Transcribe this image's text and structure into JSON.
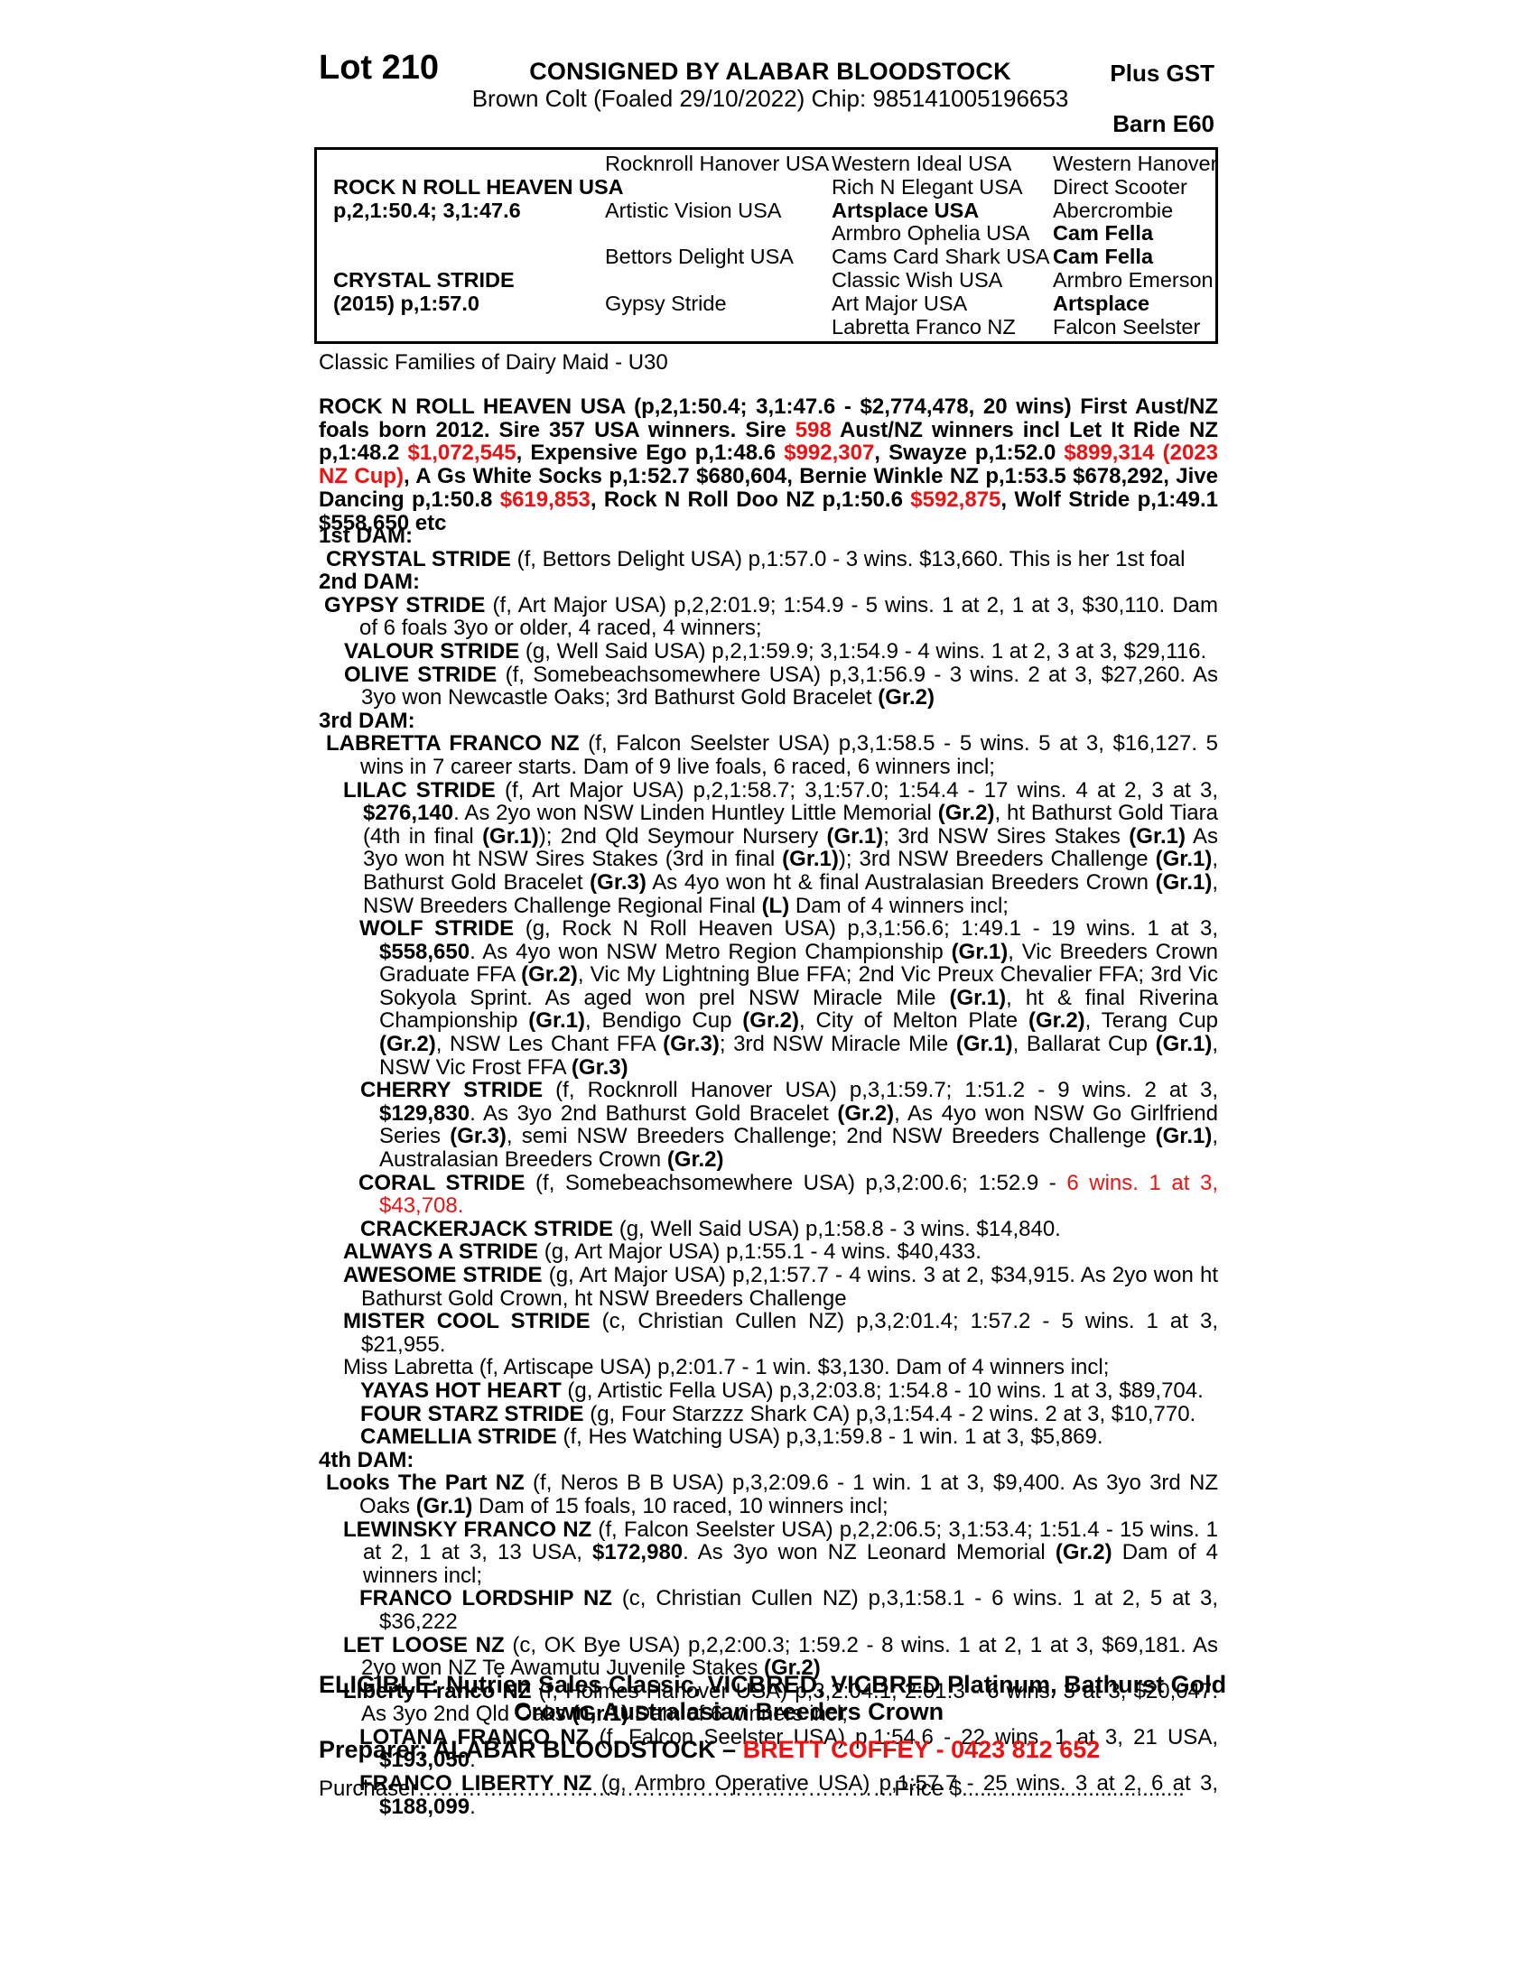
{
  "colors": {
    "red": "#ee1111",
    "text": "#000000",
    "page": "#ffffff"
  },
  "header": {
    "lot": "Lot 210",
    "consigned": "CONSIGNED BY ALABAR BLOODSTOCK",
    "plus_gst": "Plus GST",
    "description": "Brown Colt (Foaled 29/10/2022) Chip: 985141005196653",
    "barn": "Barn E60"
  },
  "pedigree_table": {
    "columns": [
      [
        {
          "row": 2,
          "text": "ROCK N ROLL HEAVEN USA",
          "b": true
        },
        {
          "row": 3,
          "text": "p,2,1:50.4; 3,1:47.6",
          "b": true
        },
        {
          "row": 6,
          "text": "CRYSTAL STRIDE",
          "b": true
        },
        {
          "row": 7,
          "text": "(2015) p,1:57.0",
          "b": true
        }
      ],
      [
        {
          "row": 1,
          "text": "Rocknroll Hanover USA"
        },
        {
          "row": 3,
          "text": "Artistic Vision USA"
        },
        {
          "row": 5,
          "text": "Bettors Delight USA"
        },
        {
          "row": 7,
          "text": "Gypsy Stride"
        }
      ],
      [
        {
          "row": 1,
          "text": "Western Ideal USA"
        },
        {
          "row": 2,
          "text": "Rich N Elegant USA"
        },
        {
          "row": 3,
          "text": "Artsplace USA",
          "b": true
        },
        {
          "row": 4,
          "text": "Armbro Ophelia USA"
        },
        {
          "row": 5,
          "text": "Cams Card Shark USA"
        },
        {
          "row": 6,
          "text": "Classic Wish USA"
        },
        {
          "row": 7,
          "text": "Art Major USA"
        },
        {
          "row": 8,
          "text": "Labretta Franco NZ"
        }
      ],
      [
        {
          "row": 1,
          "text": "Western Hanover"
        },
        {
          "row": 2,
          "text": "Direct Scooter"
        },
        {
          "row": 3,
          "text": "Abercrombie"
        },
        {
          "row": 4,
          "text": "Cam Fella",
          "b": true
        },
        {
          "row": 5,
          "text": "Cam Fella",
          "b": true
        },
        {
          "row": 6,
          "text": "Armbro Emerson"
        },
        {
          "row": 7,
          "text": "Artsplace",
          "b": true
        },
        {
          "row": 8,
          "text": "Falcon Seelster"
        }
      ]
    ]
  },
  "family_note": "Classic Families of Dairy Maid - U30",
  "sire_paragraph": {
    "segments": [
      {
        "t": "ROCK N ROLL HEAVEN USA (p,2,1:50.4; 3,1:47.6 - $2,774,478, 20 wins) First Aust/NZ foals born 2012. Sire 357 USA winners. Sire ",
        "b": true
      },
      {
        "t": "598",
        "b": true,
        "r": true
      },
      {
        "t": " Aust/NZ winners incl Let It Ride NZ p,1:48.2 ",
        "b": true
      },
      {
        "t": "$1,072,545",
        "b": true,
        "r": true
      },
      {
        "t": ", Expensive Ego p,1:48.6 ",
        "b": true
      },
      {
        "t": "$992,307",
        "b": true,
        "r": true
      },
      {
        "t": ", Swayze p,1:52.0 ",
        "b": true
      },
      {
        "t": "$899,314 (2023 NZ Cup)",
        "b": true,
        "r": true
      },
      {
        "t": ", A Gs White Socks p,1:52.7 $680,604, Bernie Winkle NZ p,1:53.5 $678,292, Jive Dancing p,1:50.8 ",
        "b": true
      },
      {
        "t": "$619,853",
        "b": true,
        "r": true
      },
      {
        "t": ", Rock N Roll Doo NZ p,1:50.6 ",
        "b": true
      },
      {
        "t": "$592,875",
        "b": true,
        "r": true
      },
      {
        "t": ", Wolf Stride p,1:49.1 $558,650 etc",
        "b": true
      }
    ]
  },
  "entries": [
    {
      "h": true,
      "ind": 0,
      "cont": 45,
      "segments": [
        {
          "t": "1st DAM:",
          "b": true
        }
      ]
    },
    {
      "ind": 8,
      "cont": 45,
      "segments": [
        {
          "t": "CRYSTAL STRIDE",
          "b": true
        },
        {
          "t": " (f, Bettors Delight USA) p,1:57.0 - 3 wins. $13,660. This is her 1st foal"
        }
      ]
    },
    {
      "h": true,
      "ind": 0,
      "cont": 45,
      "segments": [
        {
          "t": "2nd DAM:",
          "b": true
        }
      ]
    },
    {
      "ind": 6,
      "cont": 45,
      "segments": [
        {
          "t": "GYPSY STRIDE",
          "b": true
        },
        {
          "t": " (f, Art Major USA) p,2,2:01.9; 1:54.9 - 5 wins. 1 at 2, 1 at 3, $30,110. Dam of 6 foals 3yo or older, 4 raced, 4 winners;"
        }
      ]
    },
    {
      "ind": 28,
      "cont": 47,
      "segments": [
        {
          "t": "VALOUR STRIDE",
          "b": true
        },
        {
          "t": " (g, Well Said USA) p,2,1:59.9; 3,1:54.9 - 4 wins. 1 at 2, 3 at 3, $29,116."
        }
      ]
    },
    {
      "ind": 28,
      "cont": 47,
      "segments": [
        {
          "t": "OLIVE STRIDE",
          "b": true
        },
        {
          "t": " (f, Somebeachsomewhere USA) p,3,1:56.9 - 3 wins. 2 at 3, $27,260. As 3yo won Newcastle Oaks; 3rd Bathurst Gold Bracelet "
        },
        {
          "t": "(Gr.2)",
          "b": true
        }
      ]
    },
    {
      "h": true,
      "ind": 0,
      "cont": 45,
      "segments": [
        {
          "t": "3rd DAM:",
          "b": true
        }
      ]
    },
    {
      "ind": 8,
      "cont": 46,
      "segments": [
        {
          "t": "LABRETTA FRANCO NZ",
          "b": true
        },
        {
          "t": " (f, Falcon Seelster USA) p,3,1:58.5 - 5 wins. 5 at 3, $16,127. 5 wins in 7 career starts. Dam of 9 live foals, 6 raced, 6 winners incl;"
        }
      ]
    },
    {
      "ind": 27,
      "cont": 49,
      "segments": [
        {
          "t": "LILAC STRIDE",
          "b": true
        },
        {
          "t": " (f, Art Major USA) p,2,1:58.7; 3,1:57.0; 1:54.4 - 17 wins. 4 at 2, 3 at 3, "
        },
        {
          "t": "$276,140",
          "b": true
        },
        {
          "t": ". As 2yo won NSW Linden Huntley Little Memorial "
        },
        {
          "t": "(Gr.2)",
          "b": true
        },
        {
          "t": ", ht Bathurst Gold Tiara (4th in final "
        },
        {
          "t": "(Gr.1)",
          "b": true
        },
        {
          "t": "); 2nd Qld Seymour Nursery "
        },
        {
          "t": "(Gr.1)",
          "b": true
        },
        {
          "t": "; 3rd NSW Sires Stakes "
        },
        {
          "t": "(Gr.1)",
          "b": true
        },
        {
          "t": " As 3yo won ht NSW Sires Stakes (3rd in final "
        },
        {
          "t": "(Gr.1)",
          "b": true
        },
        {
          "t": "); 3rd NSW Breeders Challenge "
        },
        {
          "t": "(Gr.1)",
          "b": true
        },
        {
          "t": ", Bathurst Gold Bracelet "
        },
        {
          "t": "(Gr.3)",
          "b": true
        },
        {
          "t": " As 4yo won ht & final Australasian Breeders Crown "
        },
        {
          "t": "(Gr.1)",
          "b": true
        },
        {
          "t": ", NSW Breeders Challenge Regional Final "
        },
        {
          "t": "(L)",
          "b": true
        },
        {
          "t": " Dam of 4 winners incl;"
        }
      ]
    },
    {
      "ind": 45,
      "cont": 67,
      "segments": [
        {
          "t": "WOLF STRIDE",
          "b": true
        },
        {
          "t": " (g, Rock N Roll Heaven USA) p,3,1:56.6; 1:49.1 - 19 wins. 1 at 3, "
        },
        {
          "t": "$558,650",
          "b": true
        },
        {
          "t": ". As 4yo won NSW Metro Region Championship "
        },
        {
          "t": "(Gr.1)",
          "b": true
        },
        {
          "t": ", Vic Breeders Crown Graduate FFA "
        },
        {
          "t": "(Gr.2)",
          "b": true
        },
        {
          "t": ", Vic My Lightning Blue FFA; 2nd Vic Preux Chevalier FFA; 3rd Vic Sokyola Sprint. As aged won prel NSW Miracle Mile "
        },
        {
          "t": "(Gr.1)",
          "b": true
        },
        {
          "t": ", ht & final Riverina Championship "
        },
        {
          "t": "(Gr.1)",
          "b": true
        },
        {
          "t": ", Bendigo Cup "
        },
        {
          "t": "(Gr.2)",
          "b": true
        },
        {
          "t": ", City of Melton Plate "
        },
        {
          "t": "(Gr.2)",
          "b": true
        },
        {
          "t": ", Terang Cup "
        },
        {
          "t": "(Gr.2)",
          "b": true
        },
        {
          "t": ", NSW Les Chant FFA "
        },
        {
          "t": "(Gr.3)",
          "b": true
        },
        {
          "t": "; 3rd NSW Miracle Mile "
        },
        {
          "t": "(Gr.1)",
          "b": true
        },
        {
          "t": ", Ballarat Cup "
        },
        {
          "t": "(Gr.1)",
          "b": true
        },
        {
          "t": ", NSW Vic Frost FFA "
        },
        {
          "t": "(Gr.3)",
          "b": true
        }
      ]
    },
    {
      "ind": 46,
      "cont": 67,
      "segments": [
        {
          "t": "CHERRY STRIDE",
          "b": true
        },
        {
          "t": " (f, Rocknroll Hanover USA) p,3,1:59.7; 1:51.2 - 9 wins. 2 at 3, "
        },
        {
          "t": "$129,830",
          "b": true
        },
        {
          "t": ". As 3yo 2nd Bathurst Gold Bracelet "
        },
        {
          "t": "(Gr.2)",
          "b": true
        },
        {
          "t": ", As 4yo won NSW Go Girlfriend Series "
        },
        {
          "t": "(Gr.3)",
          "b": true
        },
        {
          "t": ", semi NSW Breeders Challenge; 2nd NSW Breeders Challenge "
        },
        {
          "t": "(Gr.1)",
          "b": true
        },
        {
          "t": ", Australasian Breeders Crown "
        },
        {
          "t": "(Gr.2)",
          "b": true
        }
      ]
    },
    {
      "ind": 44,
      "cont": 67,
      "segments": [
        {
          "t": "CORAL STRIDE",
          "b": true
        },
        {
          "t": " (f, Somebeachsomewhere USA) p,3,2:00.6; 1:52.9 - "
        },
        {
          "t": "6 wins. 1 at 3, $43,708.",
          "r": true
        }
      ]
    },
    {
      "ind": 46,
      "cont": 67,
      "segments": [
        {
          "t": "CRACKERJACK STRIDE",
          "b": true
        },
        {
          "t": " (g, Well Said USA) p,1:58.8 - 3 wins. $14,840."
        }
      ]
    },
    {
      "ind": 27,
      "cont": 47,
      "segments": [
        {
          "t": "ALWAYS A STRIDE",
          "b": true
        },
        {
          "t": " (g, Art Major USA) p,1:55.1 - 4 wins. $40,433."
        }
      ]
    },
    {
      "ind": 27,
      "cont": 47,
      "segments": [
        {
          "t": "AWESOME STRIDE",
          "b": true
        },
        {
          "t": " (g, Art Major USA) p,2,1:57.7 - 4 wins. 3 at 2, $34,915. As 2yo won ht Bathurst Gold Crown, ht NSW Breeders Challenge"
        }
      ]
    },
    {
      "ind": 27,
      "cont": 47,
      "segments": [
        {
          "t": "MISTER COOL STRIDE",
          "b": true
        },
        {
          "t": " (c, Christian Cullen NZ) p,3,2:01.4; 1:57.2 - 5 wins. 1 at 3, $21,955."
        }
      ]
    },
    {
      "ind": 27,
      "cont": 47,
      "segments": [
        {
          "t": "Miss Labretta (f, Artiscape USA) p,2:01.7 - 1 win. $3,130. Dam of 4 winners incl;"
        }
      ]
    },
    {
      "ind": 46,
      "cont": 67,
      "segments": [
        {
          "t": "YAYAS HOT HEART",
          "b": true
        },
        {
          "t": " (g, Artistic Fella USA) p,3,2:03.8; 1:54.8 - 10 wins. 1 at 3, $89,704."
        }
      ]
    },
    {
      "ind": 46,
      "cont": 67,
      "segments": [
        {
          "t": "FOUR STARZ STRIDE",
          "b": true
        },
        {
          "t": " (g, Four Starzzz Shark CA) p,3,1:54.4 - 2 wins. 2 at 3, $10,770."
        }
      ]
    },
    {
      "ind": 46,
      "cont": 67,
      "segments": [
        {
          "t": "CAMELLIA STRIDE",
          "b": true
        },
        {
          "t": " (f, Hes Watching USA) p,3,1:59.8 - 1 win. 1 at 3, $5,869."
        }
      ]
    },
    {
      "h": true,
      "ind": 0,
      "cont": 45,
      "segments": [
        {
          "t": "4th DAM:",
          "b": true
        }
      ]
    },
    {
      "ind": 8,
      "cont": 45,
      "segments": [
        {
          "t": "Looks The Part NZ",
          "b": true
        },
        {
          "t": " (f, Neros B B USA) p,3,2:09.6 - 1 win. 1 at 3, $9,400. As 3yo 3rd NZ Oaks "
        },
        {
          "t": "(Gr.1)",
          "b": true
        },
        {
          "t": " Dam of 15 foals, 10 raced, 10 winners incl;"
        }
      ]
    },
    {
      "ind": 27,
      "cont": 49,
      "segments": [
        {
          "t": "LEWINSKY FRANCO NZ",
          "b": true
        },
        {
          "t": " (f, Falcon Seelster USA) p,2,2:06.5; 3,1:53.4; 1:51.4 - 15 wins. 1 at 2, 1 at 3, 13 USA, "
        },
        {
          "t": "$172,980",
          "b": true
        },
        {
          "t": ". As 3yo won NZ Leonard Memorial "
        },
        {
          "t": "(Gr.2)",
          "b": true
        },
        {
          "t": " Dam of 4 winners incl;"
        }
      ]
    },
    {
      "ind": 45,
      "cont": 67,
      "segments": [
        {
          "t": "FRANCO LORDSHIP NZ",
          "b": true
        },
        {
          "t": " (c, Christian Cullen NZ) p,3,1:58.1 - 6 wins. 1 at 2, 5 at 3, $36,222"
        }
      ]
    },
    {
      "ind": 27,
      "cont": 47,
      "segments": [
        {
          "t": "LET LOOSE NZ",
          "b": true
        },
        {
          "t": " (c, OK Bye USA) p,2,2:00.3; 1:59.2 - 8 wins. 1 at 2, 1 at 3, $69,181. As 2yo won NZ Te Awamutu Juvenile Stakes "
        },
        {
          "t": "(Gr.2)",
          "b": true
        }
      ]
    },
    {
      "ind": 27,
      "cont": 47,
      "segments": [
        {
          "t": "Liberty Franco NZ",
          "b": true
        },
        {
          "t": " (f, Holmes Hanover USA) p,3,2:04.1; 2:01.3 - 6 wins. 3 at 3, $20,047. As 3yo 2nd Qld Oaks "
        },
        {
          "t": "(Gr.1)",
          "b": true
        },
        {
          "t": " Dam of 6 winners incl;"
        }
      ]
    },
    {
      "ind": 45,
      "cont": 67,
      "segments": [
        {
          "t": "LOTANA FRANCO NZ",
          "b": true
        },
        {
          "t": " (f, Falcon Seelster USA) p,1:54.6 - 22 wins. 1 at 3, 21 USA, "
        },
        {
          "t": "$193,050",
          "b": true
        },
        {
          "t": "."
        }
      ]
    },
    {
      "ind": 45,
      "cont": 67,
      "segments": [
        {
          "t": "FRANCO LIBERTY NZ",
          "b": true
        },
        {
          "t": " (g, Armbro Operative USA) p,1:57.7 - 25 wins. 3 at 2, 6 at 3, "
        },
        {
          "t": "$188,099",
          "b": true
        },
        {
          "t": "."
        }
      ]
    }
  ],
  "eligible": {
    "line1": "ELIGIBLE: Nutrien Sales Classic, VICBRED, VICBRED Platinum, Bathurst Gold",
    "line2": "Crown, Australasian Breeders Crown"
  },
  "preparer": {
    "segments": [
      {
        "t": "Preparer: ALABAR BLOODSTOCK – ",
        "b": true
      },
      {
        "t": "BRETT COFFEY - 0423 812 652",
        "b": true,
        "r": true
      }
    ]
  },
  "purchaser": {
    "segments": [
      {
        "t": "Purchaser"
      },
      {
        "t": "…………………………………………………………"
      },
      {
        "t": "Price $"
      },
      {
        "t": "....................................."
      }
    ]
  }
}
